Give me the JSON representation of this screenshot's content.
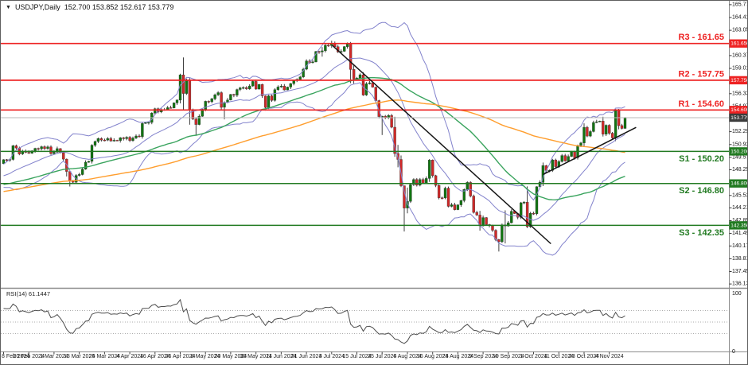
{
  "window": {
    "symbol": "USDJPY,Daily",
    "ohlc_string": "152.700 153.852 152.617 153.779"
  },
  "colors": {
    "bull": "#117511",
    "bear": "#d02828",
    "wick": "#2b2b2b",
    "band": "#8282cc",
    "ma_fast": "#3aa45e",
    "ma_slow": "#ff9e2e",
    "resistance": "#ee2222",
    "support": "#217a21",
    "price_line": "#b8b8b8",
    "badge_price_bg": "#3c3c3c",
    "badge_text": "#ffffff",
    "axis_text": "#111111",
    "border": "#8c8c8c",
    "rsi_line": "#4d4d4d",
    "rsi_dotted": "#909090",
    "trendline": "#151515"
  },
  "price_axis": {
    "ticks": [
      165.77,
      164.41,
      163.05,
      160.37,
      159.01,
      156.33,
      154.97,
      152.29,
      150.93,
      149.57,
      148.25,
      145.53,
      144.21,
      142.85,
      141.49,
      140.17,
      138.81,
      137.45,
      136.13
    ],
    "current_price": "153.779"
  },
  "rsi": {
    "label": "RSI(14) 61.1447",
    "levels": [
      70,
      50,
      30
    ],
    "top_label": "100",
    "bottom_label": "0"
  },
  "sr_levels": [
    {
      "id": "r3",
      "label": "R3 - 161.65",
      "price": 161.65,
      "type": "resistance"
    },
    {
      "id": "r2",
      "label": "R2 - 157.75",
      "price": 157.75,
      "type": "resistance"
    },
    {
      "id": "r1",
      "label": "R1 - 154.60",
      "price": 154.6,
      "type": "resistance"
    },
    {
      "id": "s1",
      "label": "S1 - 150.20",
      "price": 150.2,
      "type": "support"
    },
    {
      "id": "s2",
      "label": "S2 - 146.80",
      "price": 146.8,
      "type": "support"
    },
    {
      "id": "s3",
      "label": "S3 - 142.35",
      "price": 142.35,
      "type": "support"
    }
  ],
  "chart_data": {
    "type": "candlestick",
    "symbol": "USDJPY",
    "timeframe": "Daily",
    "title": "USDJPY,Daily",
    "last_ohlc": {
      "open": 152.7,
      "high": 153.852,
      "low": 152.617,
      "close": 153.779
    },
    "visible_price_range": [
      136.13,
      165.77
    ],
    "date_labels": [
      "8 Feb 2024",
      "20 Feb 2024",
      "1 Mar 2024",
      "13 Mar 2024",
      "25 Mar 2024",
      "4 Apr 2024",
      "16 Apr 2024",
      "26 Apr 2024",
      "8 May 2024",
      "20 May 2024",
      "30 May 2024",
      "11 Jun 2024",
      "21 Jun 2024",
      "3 Jul 2024",
      "15 Jul 2024",
      "25 Jul 2024",
      "6 Aug 2024",
      "16 Aug 2024",
      "28 Aug 2024",
      "9 Sep 2024",
      "19 Sep 2024",
      "1 Oct 2024",
      "11 Oct 2024",
      "23 Oct 2024",
      "4 Nov 2024"
    ],
    "bars_per_label": 8,
    "first_open": 148.9,
    "closes": [
      149.32,
      149.29,
      149.35,
      150.8,
      150.56,
      149.93,
      150.21,
      150.1,
      150.0,
      150.27,
      150.52,
      150.48,
      150.7,
      150.5,
      150.68,
      149.96,
      150.12,
      150.5,
      150.05,
      149.38,
      148.07,
      147.06,
      146.93,
      147.65,
      147.75,
      148.32,
      149.05,
      149.15,
      150.86,
      151.26,
      151.56,
      151.41,
      151.4,
      151.56,
      151.31,
      151.38,
      151.35,
      151.65,
      151.55,
      151.7,
      151.35,
      151.62,
      151.84,
      151.76,
      153.17,
      153.26,
      153.28,
      154.27,
      154.72,
      154.39,
      154.63,
      154.64,
      154.84,
      154.82,
      155.35,
      155.65,
      158.33,
      156.35,
      157.8,
      154.57,
      153.64,
      153.05,
      153.92,
      154.67,
      155.52,
      155.48,
      155.78,
      156.21,
      156.44,
      154.88,
      155.39,
      155.65,
      156.25,
      156.17,
      156.77,
      156.94,
      156.98,
      156.85,
      157.15,
      157.63,
      156.82,
      157.31,
      156.1,
      154.87,
      156.1,
      155.61,
      156.75,
      157.04,
      157.14,
      156.73,
      157.03,
      157.4,
      157.73,
      157.85,
      158.1,
      158.93,
      159.8,
      159.61,
      159.7,
      160.81,
      160.76,
      160.88,
      161.47,
      161.44,
      161.69,
      161.31,
      160.75,
      160.82,
      161.32,
      161.69,
      158.9,
      157.88,
      157.98,
      158.34,
      156.18,
      157.37,
      157.48,
      157.02,
      155.59,
      153.89,
      153.94,
      153.76,
      154.01,
      152.77,
      149.98,
      149.35,
      146.56,
      144.18,
      144.9,
      146.68,
      147.22,
      146.61,
      147.21,
      146.84,
      147.33,
      149.28,
      147.63,
      146.6,
      145.28,
      145.26,
      146.3,
      144.37,
      144.54,
      144.02,
      144.53,
      144.99,
      146.17,
      146.91,
      145.47,
      143.73,
      143.45,
      142.3,
      143.18,
      142.44,
      142.34,
      141.83,
      140.85,
      140.61,
      142.4,
      142.29,
      142.63,
      143.85,
      143.61,
      143.21,
      144.75,
      144.81,
      142.21,
      143.63,
      143.57,
      146.45,
      146.93,
      148.7,
      148.18,
      148.19,
      149.3,
      148.58,
      149.13,
      149.76,
      149.19,
      149.66,
      150.21,
      149.53,
      150.83,
      151.1,
      152.76,
      151.83,
      152.31,
      153.27,
      153.35,
      153.42,
      152.03,
      152.98,
      152.13,
      151.62,
      154.61,
      152.94,
      152.64,
      153.78
    ],
    "extremes": {
      "3": [
        150.89,
        149.24
      ],
      "20": [
        149.45,
        147.54
      ],
      "21": [
        148.1,
        146.48
      ],
      "28": [
        150.96,
        148.92
      ],
      "44": [
        153.29,
        151.56
      ],
      "56": [
        158.44,
        155.3
      ],
      "57": [
        160.17,
        154.54
      ],
      "59": [
        157.98,
        153.04
      ],
      "61": [
        153.84,
        151.86
      ],
      "69": [
        156.57,
        154.65
      ],
      "70": [
        155.51,
        153.6
      ],
      "83": [
        156.15,
        154.53
      ],
      "101": [
        161.27,
        160.26
      ],
      "104": [
        161.95,
        161.18
      ],
      "110": [
        161.81,
        157.44
      ],
      "111": [
        159.45,
        157.38
      ],
      "114": [
        158.61,
        156.1
      ],
      "120": [
        153.98,
        151.94
      ],
      "124": [
        153.88,
        149.63
      ],
      "125": [
        150.89,
        148.51
      ],
      "126": [
        149.77,
        146.42
      ],
      "127": [
        146.56,
        141.7
      ],
      "128": [
        146.36,
        143.63
      ],
      "135": [
        149.39,
        146.97
      ],
      "151": [
        143.89,
        141.79
      ],
      "157": [
        140.92,
        139.58
      ],
      "159": [
        143.95,
        140.44
      ],
      "166": [
        146.49,
        142.07
      ],
      "169": [
        146.5,
        143.42
      ],
      "171": [
        149.02,
        146.52
      ],
      "184": [
        153.18,
        150.77
      ],
      "190": [
        153.88,
        151.78
      ],
      "194": [
        154.7,
        151.29
      ],
      "195": [
        154.71,
        152.55
      ],
      "197": [
        153.85,
        152.62
      ]
    },
    "indicators": [
      {
        "name": "Bollinger Bands",
        "period": 20,
        "deviation": 2
      },
      {
        "name": "SMA fast",
        "period": 50
      },
      {
        "name": "SMA slow",
        "period": 100
      },
      {
        "name": "RSI",
        "period": 14,
        "current_value": "61.1447",
        "levels": [
          70,
          50,
          30
        ],
        "range": [
          0,
          100
        ]
      }
    ],
    "trendlines": [
      {
        "name": "descending-trendline",
        "from_bar": 104.2,
        "from_price": 161.45,
        "to_bar": 173.5,
        "to_price": 140.4
      },
      {
        "name": "ascending-trendline",
        "from_bar": 171.0,
        "from_price": 147.75,
        "to_bar": 200.5,
        "to_price": 152.75
      }
    ]
  }
}
